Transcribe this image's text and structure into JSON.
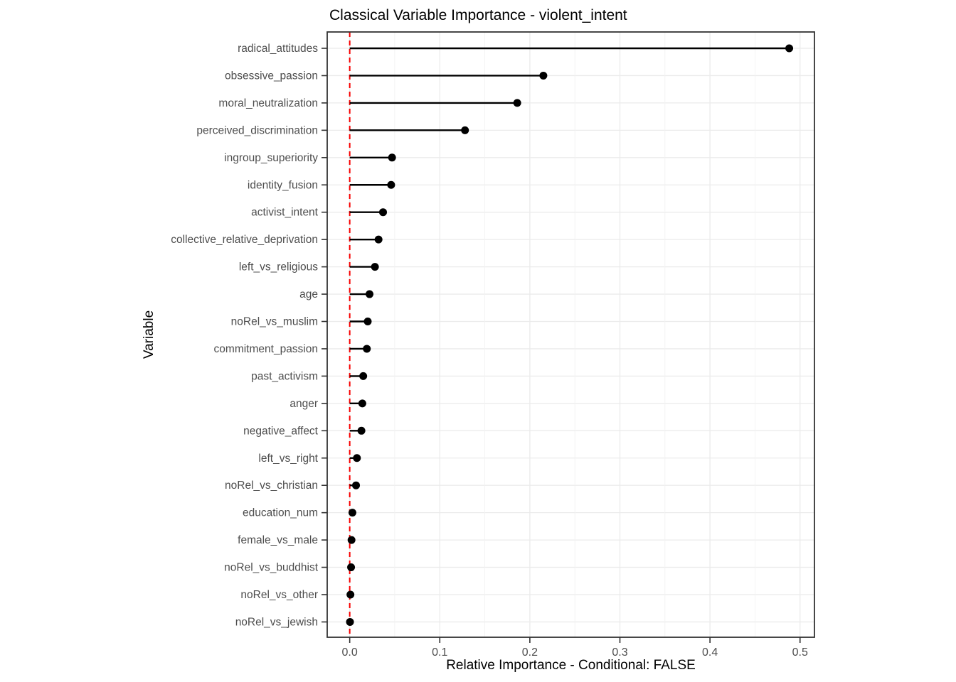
{
  "chart_data": {
    "type": "scatter",
    "variant": "lollipop",
    "title": "Classical Variable Importance - violent_intent",
    "xlabel": "Relative Importance - Conditional: FALSE",
    "ylabel": "Variable",
    "categories": [
      "radical_attitudes",
      "obsessive_passion",
      "moral_neutralization",
      "perceived_discrimination",
      "ingroup_superiority",
      "identity_fusion",
      "activist_intent",
      "collective_relative_deprivation",
      "left_vs_religious",
      "age",
      "noRel_vs_muslim",
      "commitment_passion",
      "past_activism",
      "anger",
      "negative_affect",
      "left_vs_right",
      "noRel_vs_christian",
      "education_num",
      "female_vs_male",
      "noRel_vs_buddhist",
      "noRel_vs_other",
      "noRel_vs_jewish"
    ],
    "values": [
      0.488,
      0.215,
      0.186,
      0.128,
      0.047,
      0.046,
      0.037,
      0.032,
      0.028,
      0.022,
      0.02,
      0.019,
      0.015,
      0.014,
      0.013,
      0.008,
      0.007,
      0.003,
      0.002,
      0.0015,
      0.0008,
      0.0003
    ],
    "x_tick_values": [
      0.0,
      0.1,
      0.2,
      0.3,
      0.4,
      0.5
    ],
    "x_tick_labels": [
      "0.0",
      "0.1",
      "0.2",
      "0.3",
      "0.4",
      "0.5"
    ],
    "x_minor_tick_values": [
      0.05,
      0.15,
      0.25,
      0.35,
      0.45
    ],
    "xlim": [
      -0.025,
      0.516
    ],
    "reference_line_x": 0,
    "grid": "on",
    "legend": "none",
    "colors": {
      "point": "#000000",
      "stem": "#000000",
      "reference_line": "#F80000",
      "grid_major": "#EBEBEB",
      "grid_minor": "#F2F2F2",
      "panel_border": "#333333",
      "tick_mark": "#333333",
      "axis_text": "#4D4D4D",
      "title_text": "#000000",
      "background": "#FFFFFF"
    }
  }
}
